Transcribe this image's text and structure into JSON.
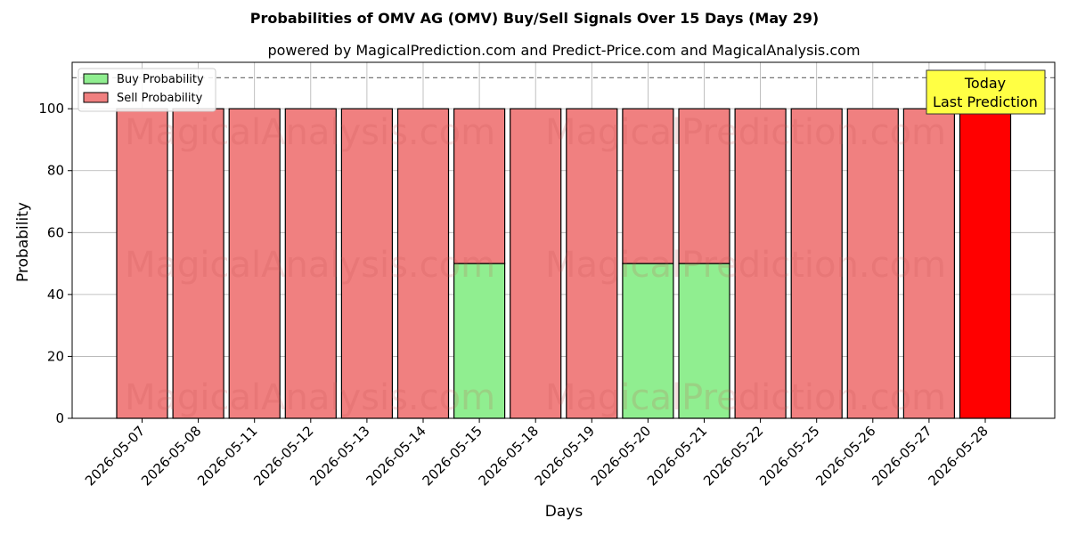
{
  "chart_data": {
    "type": "bar",
    "stacked": true,
    "title": "Probabilities of OMV AG (OMV) Buy/Sell Signals Over 15 Days (May 29)",
    "subtitle": "powered by MagicalPrediction.com and Predict-Price.com and MagicalAnalysis.com",
    "xlabel": "Days",
    "ylabel": "Probability",
    "ylim": [
      0,
      115
    ],
    "yticks": [
      0,
      20,
      40,
      60,
      80,
      100
    ],
    "grid": true,
    "legend_position": "top-left",
    "threshold_line": 110,
    "categories": [
      "2026-05-07",
      "2026-05-08",
      "2026-05-11",
      "2026-05-12",
      "2026-05-13",
      "2026-05-14",
      "2026-05-15",
      "2026-05-18",
      "2026-05-19",
      "2026-05-20",
      "2026-05-21",
      "2026-05-22",
      "2026-05-25",
      "2026-05-26",
      "2026-05-27",
      "2026-05-28"
    ],
    "series": [
      {
        "name": "Buy Probability",
        "color": "#90ee90",
        "values": [
          0,
          0,
          0,
          0,
          0,
          0,
          50,
          0,
          0,
          50,
          50,
          0,
          0,
          0,
          0,
          0
        ]
      },
      {
        "name": "Sell Probability",
        "color": "#f08080",
        "values": [
          100,
          100,
          100,
          100,
          100,
          100,
          50,
          100,
          100,
          50,
          50,
          100,
          100,
          100,
          100,
          100
        ]
      }
    ],
    "highlight": {
      "index": 15,
      "color": "#ff0000"
    },
    "annotation": {
      "line1": "Today",
      "line2": "Last Prediction",
      "color": "#ffff44"
    },
    "watermarks": [
      "MagicalAnalysis.com",
      "MagicalPrediction.com"
    ]
  }
}
